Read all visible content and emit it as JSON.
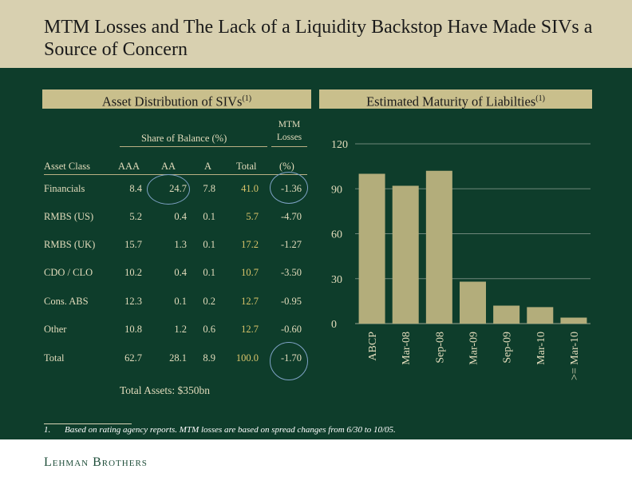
{
  "title": "MTM Losses and The Lack of a Liquidity Backstop Have Made SIVs a Source of Concern",
  "left_header": "Asset Distribution of SIVs",
  "left_header_sup": "(1)",
  "right_header": "Estimated Maturity of Liabilties",
  "right_header_sup": "(1)",
  "table": {
    "share_label": "Share of Balance (%)",
    "mtm_label_1": "MTM",
    "mtm_label_2": "Losses",
    "columns": [
      "Asset Class",
      "AAA",
      "AA",
      "A",
      "Total",
      "(%)"
    ],
    "rows": [
      {
        "name": "Financials",
        "aaa": "8.4",
        "aa": "24.7",
        "a": "7.8",
        "total": "41.0",
        "mtm": "-1.36"
      },
      {
        "name": "RMBS (US)",
        "aaa": "5.2",
        "aa": "0.4",
        "a": "0.1",
        "total": "5.7",
        "mtm": "-4.70"
      },
      {
        "name": "RMBS (UK)",
        "aaa": "15.7",
        "aa": "1.3",
        "a": "0.1",
        "total": "17.2",
        "mtm": "-1.27"
      },
      {
        "name": "CDO / CLO",
        "aaa": "10.2",
        "aa": "0.4",
        "a": "0.1",
        "total": "10.7",
        "mtm": "-3.50"
      },
      {
        "name": "Cons. ABS",
        "aaa": "12.3",
        "aa": "0.1",
        "a": "0.2",
        "total": "12.7",
        "mtm": "-0.95"
      },
      {
        "name": "Other",
        "aaa": "10.8",
        "aa": "1.2",
        "a": "0.6",
        "total": "12.7",
        "mtm": "-0.60"
      },
      {
        "name": "Total",
        "aaa": "62.7",
        "aa": "28.1",
        "a": "8.9",
        "total": "100.0",
        "mtm": "-1.70"
      }
    ]
  },
  "total_assets": "Total Assets: $350bn",
  "footnote_num": "1.",
  "footnote_text": "Based on rating agency reports. MTM losses are based on spread changes from 6/30 to 10/05.",
  "logo": "Lehman Brothers",
  "colors": {
    "title_band": "#d8d0b0",
    "panel": "#0e3d2b",
    "bar": "#b3ad7b",
    "text_light": "#e3dcbc",
    "highlight_total": "#d9c46a",
    "highlight_circle": "#7fa3c6"
  },
  "chart_data": {
    "type": "bar",
    "title": "Estimated Maturity of Liabilties",
    "categories": [
      "ABCP",
      "Mar-08",
      "Sep-08",
      "Mar-09",
      "Sep-09",
      "Mar-10",
      ">= Mar-10"
    ],
    "values": [
      100,
      92,
      102,
      28,
      12,
      11,
      4
    ],
    "yticks": [
      0,
      30,
      60,
      90,
      120
    ],
    "ylim": [
      0,
      120
    ],
    "grid": "horizontal"
  }
}
